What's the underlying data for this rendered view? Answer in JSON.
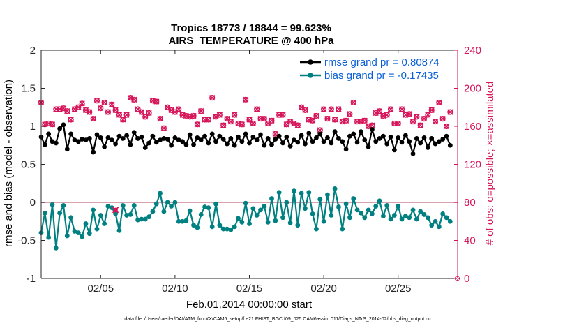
{
  "chart_data": {
    "type": "line",
    "title_line1": "Tropics 18773 / 18844 = 99.623%",
    "title_line2": "AIRS_TEMPERATURE @ 400 hPa",
    "xlabel": "Feb.01,2014 00:00:00 start",
    "ylabel_left": "rmse and bias (model - observation)",
    "ylabel_right": "# of obs: o=possible; ×=assimilated",
    "footer": "data file: /Users/raeder/DAI/ATM_forcXX/CAM6_setup/f.e21.FHIST_BGC.f09_025.CAM6assim.011/Diags_NTrS_2014-02/obs_diag_output.nc",
    "x_range": [
      1,
      29
    ],
    "ylim_left": [
      -1,
      2
    ],
    "ylim_right": [
      0,
      240
    ],
    "x_ticks": [
      5,
      10,
      15,
      20,
      25
    ],
    "x_tick_labels": [
      "02/05",
      "02/10",
      "02/15",
      "02/20",
      "02/25"
    ],
    "y_ticks_left": [
      -1,
      -0.5,
      0,
      0.5,
      1,
      1.5,
      2
    ],
    "y_tick_labels_left": [
      "-1",
      "-0.5",
      "0",
      "0.5",
      "1",
      "1.5",
      "2"
    ],
    "y_ticks_right": [
      0,
      40,
      80,
      120,
      160,
      200,
      240
    ],
    "y_tick_labels_right": [
      "0",
      "40",
      "80",
      "120",
      "160",
      "200",
      "240"
    ],
    "x": [
      1.0,
      1.25,
      1.5,
      1.75,
      2.0,
      2.25,
      2.5,
      2.75,
      3.0,
      3.25,
      3.5,
      3.75,
      4.0,
      4.25,
      4.5,
      4.75,
      5.0,
      5.25,
      5.5,
      5.75,
      6.0,
      6.25,
      6.5,
      6.75,
      7.0,
      7.25,
      7.5,
      7.75,
      8.0,
      8.25,
      8.5,
      8.75,
      9.0,
      9.25,
      9.5,
      9.75,
      10.0,
      10.25,
      10.5,
      10.75,
      11.0,
      11.25,
      11.5,
      11.75,
      12.0,
      12.25,
      12.5,
      12.75,
      13.0,
      13.25,
      13.5,
      13.75,
      14.0,
      14.25,
      14.5,
      14.75,
      15.0,
      15.25,
      15.5,
      15.75,
      16.0,
      16.25,
      16.5,
      16.75,
      17.0,
      17.25,
      17.5,
      17.75,
      18.0,
      18.25,
      18.5,
      18.75,
      19.0,
      19.25,
      19.5,
      19.75,
      20.0,
      20.25,
      20.5,
      20.75,
      21.0,
      21.25,
      21.5,
      21.75,
      22.0,
      22.25,
      22.5,
      22.75,
      23.0,
      23.25,
      23.5,
      23.75,
      24.0,
      24.25,
      24.5,
      24.75,
      25.0,
      25.25,
      25.5,
      25.75,
      26.0,
      26.25,
      26.5,
      26.75,
      27.0,
      27.25,
      27.5,
      27.75,
      28.0,
      28.25,
      28.5
    ],
    "series": [
      {
        "name": "rmse",
        "legend_label": "rmse grand pr = 0.80874",
        "color": "#000000",
        "values": [
          0.86,
          0.76,
          0.9,
          0.8,
          0.78,
          0.97,
          1.02,
          0.7,
          0.9,
          0.82,
          0.8,
          0.83,
          0.82,
          0.84,
          0.66,
          0.89,
          0.85,
          0.73,
          0.85,
          0.82,
          0.77,
          0.87,
          0.84,
          0.88,
          0.76,
          0.92,
          0.84,
          0.86,
          0.72,
          0.78,
          0.87,
          0.79,
          0.82,
          0.84,
          0.83,
          0.75,
          0.85,
          0.82,
          0.8,
          0.76,
          0.89,
          0.76,
          0.85,
          0.82,
          0.87,
          0.78,
          0.9,
          0.8,
          0.87,
          0.83,
          0.77,
          0.84,
          0.75,
          0.86,
          0.8,
          0.9,
          0.78,
          0.86,
          0.82,
          0.89,
          0.75,
          0.84,
          0.76,
          0.83,
          0.87,
          0.78,
          0.86,
          0.74,
          0.82,
          0.79,
          0.88,
          0.77,
          0.91,
          0.8,
          0.85,
          0.9,
          0.8,
          0.85,
          0.78,
          0.93,
          0.84,
          0.8,
          0.7,
          0.87,
          0.9,
          0.79,
          0.93,
          0.82,
          0.73,
          0.96,
          0.8,
          0.84,
          0.87,
          0.77,
          0.86,
          0.69,
          0.85,
          0.79,
          0.88,
          0.8,
          0.64,
          0.84,
          0.78,
          0.85,
          0.72,
          0.84,
          0.77,
          0.8,
          0.83,
          0.87,
          0.75
        ],
        "grand_value": 0.80874
      },
      {
        "name": "bias",
        "legend_label": "bias grand pr = -0.17435",
        "color": "#008080",
        "values": [
          -0.4,
          -0.14,
          -0.46,
          -0.03,
          -0.6,
          -0.14,
          -0.04,
          -0.44,
          -0.2,
          -0.38,
          -0.4,
          -0.45,
          -0.28,
          -0.41,
          -0.1,
          -0.35,
          -0.17,
          -0.28,
          -0.05,
          -0.07,
          -0.15,
          -0.37,
          -0.04,
          -0.17,
          -0.16,
          -0.04,
          -0.23,
          -0.22,
          -0.22,
          -0.19,
          -0.12,
          -0.02,
          0.12,
          -0.12,
          0.0,
          -0.05,
          0.0,
          -0.25,
          -0.25,
          -0.24,
          -0.11,
          -0.3,
          -0.33,
          -0.16,
          -0.06,
          -0.07,
          -0.32,
          -0.02,
          -0.3,
          -0.35,
          -0.35,
          -0.36,
          -0.32,
          -0.21,
          -0.26,
          -0.01,
          -0.28,
          -0.08,
          -0.17,
          -0.1,
          -0.05,
          -0.26,
          0.05,
          -0.24,
          0.13,
          -0.2,
          0.0,
          -0.27,
          0.15,
          -0.3,
          0.12,
          -0.08,
          0.13,
          -0.15,
          -0.35,
          0.04,
          -0.25,
          0.1,
          -0.17,
          0.18,
          -0.06,
          -0.35,
          -0.02,
          -0.2,
          0.05,
          -0.1,
          -0.14,
          -0.2,
          -0.1,
          -0.15,
          -0.05,
          0.02,
          -0.18,
          -0.04,
          -0.22,
          -0.17,
          -0.05,
          -0.22,
          -0.18,
          -0.2,
          -0.1,
          -0.22,
          -0.12,
          -0.16,
          -0.2,
          -0.3,
          -0.25,
          -0.32,
          -0.15,
          -0.2,
          -0.25
        ],
        "grand_value": -0.17435
      }
    ],
    "obs_counts": {
      "color": "#d6155a",
      "possible_marker": "o",
      "assimilated_marker": "x",
      "values": [
        185,
        162,
        163,
        162,
        178,
        178,
        179,
        176,
        167,
        178,
        180,
        184,
        177,
        175,
        168,
        187,
        179,
        185,
        175,
        183,
        177,
        172,
        167,
        172,
        190,
        188,
        178,
        175,
        170,
        174,
        187,
        186,
        168,
        158,
        180,
        177,
        175,
        178,
        172,
        171,
        170,
        171,
        162,
        176,
        167,
        167,
        190,
        170,
        172,
        161,
        168,
        165,
        172,
        163,
        162,
        188,
        167,
        163,
        178,
        168,
        168,
        163,
        166,
        152,
        172,
        172,
        162,
        165,
        163,
        161,
        180,
        177,
        167,
        166,
        171,
        156,
        178,
        168,
        178,
        167,
        178,
        165,
        166,
        173,
        185,
        165,
        165,
        166,
        160,
        161,
        174,
        176,
        171,
        172,
        178,
        163,
        163,
        178,
        172,
        173,
        165,
        170,
        161,
        168,
        172,
        177,
        165,
        185,
        168,
        160,
        175
      ]
    },
    "extra_marker": {
      "x": 6.0,
      "y_left": -0.1
    },
    "corner_marker": {
      "x": 29,
      "y_right": 0
    }
  }
}
